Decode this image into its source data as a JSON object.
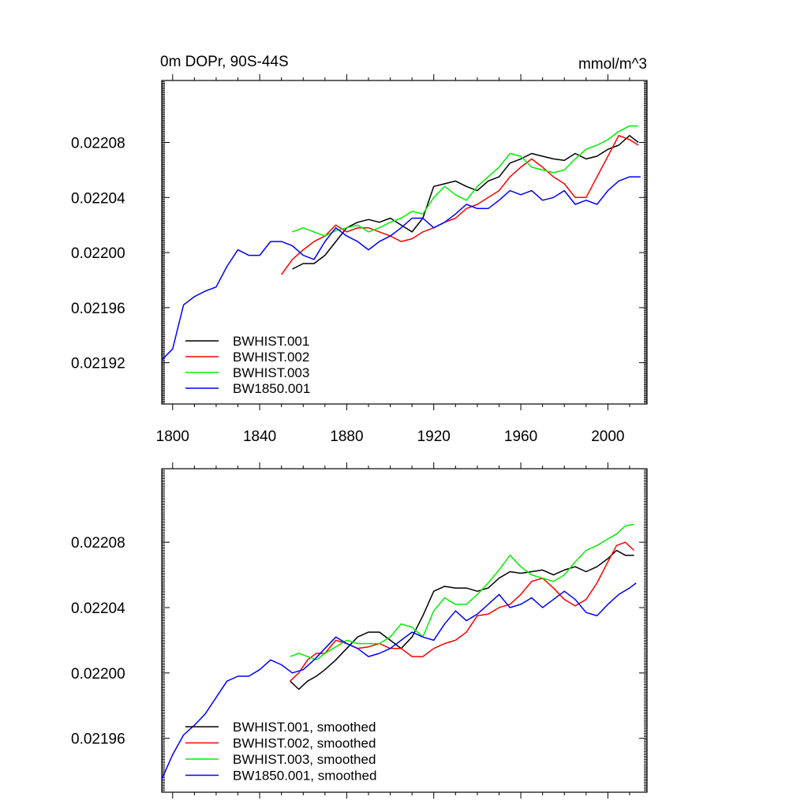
{
  "figure": {
    "title_left": "0m DOPr, 90S-44S",
    "title_right": "mmol/m^3"
  },
  "chart_data": [
    {
      "type": "line",
      "title": "0m DOPr, 90S-44S",
      "units": "mmol/m^3",
      "xlabel": "",
      "ylabel": "",
      "xlim": [
        1795,
        2018
      ],
      "ylim": [
        0.02189,
        0.022125
      ],
      "xticks": [
        1800,
        1840,
        1880,
        1920,
        1960,
        2000
      ],
      "xtick_labels": [
        "1800",
        "1840",
        "1880",
        "1920",
        "1960",
        "2000"
      ],
      "yticks": [
        0.02192,
        0.02196,
        0.022,
        0.02204,
        0.02208
      ],
      "ytick_labels": [
        "0.02192",
        "0.02196",
        "0.02200",
        "0.02204",
        "0.02208"
      ],
      "legend": "bottom-left",
      "series": [
        {
          "name": "BWHIST.001",
          "color": "#000000",
          "x": [
            1855,
            1860,
            1865,
            1870,
            1875,
            1880,
            1885,
            1890,
            1895,
            1900,
            1905,
            1910,
            1915,
            1920,
            1925,
            1930,
            1935,
            1940,
            1945,
            1950,
            1955,
            1960,
            1965,
            1970,
            1975,
            1980,
            1985,
            1990,
            1995,
            2000,
            2005,
            2010,
            2014
          ],
          "values": [
            0.021988,
            0.021992,
            0.021992,
            0.021998,
            0.022008,
            0.022018,
            0.022022,
            0.022024,
            0.022022,
            0.022025,
            0.02202,
            0.022015,
            0.022025,
            0.022048,
            0.02205,
            0.022052,
            0.022048,
            0.022045,
            0.022052,
            0.022055,
            0.022065,
            0.022068,
            0.022072,
            0.02207,
            0.022068,
            0.022067,
            0.022072,
            0.022068,
            0.02207,
            0.022075,
            0.022078,
            0.022085,
            0.02208
          ]
        },
        {
          "name": "BWHIST.002",
          "color": "#ff0000",
          "x": [
            1850,
            1855,
            1860,
            1865,
            1870,
            1875,
            1880,
            1885,
            1890,
            1895,
            1900,
            1905,
            1910,
            1915,
            1920,
            1925,
            1930,
            1935,
            1940,
            1945,
            1950,
            1955,
            1960,
            1965,
            1970,
            1975,
            1980,
            1985,
            1990,
            1995,
            2000,
            2005,
            2010,
            2014
          ],
          "values": [
            0.021984,
            0.021995,
            0.022002,
            0.022008,
            0.022012,
            0.02202,
            0.022015,
            0.022018,
            0.022018,
            0.022015,
            0.022012,
            0.022008,
            0.02201,
            0.022015,
            0.022018,
            0.022022,
            0.022025,
            0.022032,
            0.022035,
            0.02204,
            0.022045,
            0.022055,
            0.022062,
            0.022068,
            0.022062,
            0.022055,
            0.02205,
            0.02204,
            0.02204,
            0.022055,
            0.02207,
            0.022085,
            0.022082,
            0.022078
          ]
        },
        {
          "name": "BWHIST.003",
          "color": "#00ee00",
          "x": [
            1855,
            1860,
            1865,
            1870,
            1875,
            1880,
            1885,
            1890,
            1895,
            1900,
            1905,
            1910,
            1915,
            1920,
            1925,
            1930,
            1935,
            1940,
            1945,
            1950,
            1955,
            1960,
            1965,
            1970,
            1975,
            1980,
            1985,
            1990,
            1995,
            2000,
            2005,
            2010,
            2014
          ],
          "values": [
            0.022015,
            0.022018,
            0.022015,
            0.022012,
            0.022016,
            0.022018,
            0.02202,
            0.022015,
            0.022018,
            0.022022,
            0.022025,
            0.02203,
            0.022028,
            0.02204,
            0.022048,
            0.022042,
            0.022038,
            0.022048,
            0.022055,
            0.022062,
            0.022072,
            0.02207,
            0.022062,
            0.02206,
            0.022058,
            0.02206,
            0.022068,
            0.022075,
            0.022078,
            0.022082,
            0.022088,
            0.022092,
            0.022092
          ]
        },
        {
          "name": "BW1850.001",
          "color": "#0000ff",
          "x": [
            1795,
            1800,
            1805,
            1810,
            1815,
            1820,
            1825,
            1830,
            1835,
            1840,
            1845,
            1850,
            1855,
            1860,
            1865,
            1870,
            1875,
            1880,
            1885,
            1890,
            1895,
            1900,
            1905,
            1910,
            1915,
            1920,
            1925,
            1930,
            1935,
            1940,
            1945,
            1950,
            1955,
            1960,
            1965,
            1970,
            1975,
            1980,
            1985,
            1990,
            1995,
            2000,
            2005,
            2010,
            2015
          ],
          "values": [
            0.021922,
            0.02193,
            0.021962,
            0.021968,
            0.021972,
            0.021975,
            0.02199,
            0.022002,
            0.021998,
            0.021998,
            0.022008,
            0.022008,
            0.022005,
            0.021998,
            0.021995,
            0.022008,
            0.022018,
            0.022012,
            0.022008,
            0.022002,
            0.022008,
            0.022012,
            0.022018,
            0.022025,
            0.022025,
            0.022018,
            0.022022,
            0.022028,
            0.022035,
            0.022032,
            0.022032,
            0.022038,
            0.022045,
            0.022042,
            0.022045,
            0.022038,
            0.02204,
            0.022045,
            0.022035,
            0.022038,
            0.022035,
            0.022045,
            0.022052,
            0.022055,
            0.022055
          ]
        }
      ]
    },
    {
      "type": "line",
      "title": "",
      "xlabel": "",
      "ylabel": "",
      "xlim": [
        1795,
        2018
      ],
      "ylim": [
        0.021927,
        0.022125
      ],
      "xticks": [
        1800,
        1840,
        1880,
        1920,
        1960,
        2000
      ],
      "yticks": [
        0.02196,
        0.022,
        0.02204,
        0.02208
      ],
      "ytick_labels": [
        "0.02196",
        "0.02200",
        "0.02204",
        "0.02208"
      ],
      "legend": "bottom-left",
      "series": [
        {
          "name": "BWHIST.001, smoothed",
          "color": "#000000",
          "x": [
            1854,
            1858,
            1862,
            1866,
            1870,
            1875,
            1880,
            1885,
            1890,
            1895,
            1900,
            1905,
            1910,
            1915,
            1920,
            1925,
            1930,
            1935,
            1940,
            1945,
            1950,
            1955,
            1960,
            1965,
            1970,
            1975,
            1980,
            1985,
            1990,
            1995,
            2000,
            2004,
            2008,
            2012
          ],
          "values": [
            0.021995,
            0.02199,
            0.021995,
            0.021998,
            0.022002,
            0.022008,
            0.022015,
            0.022022,
            0.022025,
            0.022025,
            0.02202,
            0.022015,
            0.022022,
            0.022035,
            0.02205,
            0.022053,
            0.022052,
            0.022052,
            0.02205,
            0.022052,
            0.022058,
            0.022062,
            0.022061,
            0.022062,
            0.022063,
            0.02206,
            0.022063,
            0.022065,
            0.022062,
            0.022065,
            0.02207,
            0.022075,
            0.022072,
            0.022072
          ]
        },
        {
          "name": "BWHIST.002, smoothed",
          "color": "#ff0000",
          "x": [
            1854,
            1858,
            1862,
            1866,
            1870,
            1875,
            1880,
            1885,
            1890,
            1895,
            1900,
            1905,
            1910,
            1915,
            1920,
            1925,
            1930,
            1935,
            1940,
            1945,
            1950,
            1955,
            1960,
            1965,
            1970,
            1975,
            1980,
            1985,
            1990,
            1995,
            2000,
            2004,
            2008,
            2012
          ],
          "values": [
            0.021995,
            0.022,
            0.022008,
            0.022012,
            0.022012,
            0.02202,
            0.022018,
            0.022015,
            0.022016,
            0.022018,
            0.022015,
            0.022015,
            0.02201,
            0.02201,
            0.022015,
            0.022018,
            0.02202,
            0.022025,
            0.022035,
            0.022036,
            0.02204,
            0.022042,
            0.022048,
            0.022056,
            0.022058,
            0.022052,
            0.022045,
            0.022041,
            0.022045,
            0.022055,
            0.022068,
            0.022078,
            0.02208,
            0.022075
          ]
        },
        {
          "name": "BWHIST.003, smoothed",
          "color": "#00ee00",
          "x": [
            1854,
            1858,
            1862,
            1866,
            1870,
            1875,
            1880,
            1885,
            1890,
            1895,
            1900,
            1905,
            1910,
            1915,
            1920,
            1925,
            1930,
            1935,
            1940,
            1945,
            1950,
            1955,
            1960,
            1965,
            1970,
            1975,
            1980,
            1985,
            1990,
            1995,
            2000,
            2004,
            2008,
            2012
          ],
          "values": [
            0.02201,
            0.022012,
            0.02201,
            0.022008,
            0.022012,
            0.022016,
            0.02202,
            0.022018,
            0.022018,
            0.022018,
            0.022022,
            0.02203,
            0.022028,
            0.022022,
            0.022038,
            0.022046,
            0.022042,
            0.022042,
            0.022048,
            0.022055,
            0.022063,
            0.022072,
            0.022065,
            0.02206,
            0.022058,
            0.022056,
            0.02206,
            0.022068,
            0.022075,
            0.022078,
            0.022082,
            0.022085,
            0.02209,
            0.022091
          ]
        },
        {
          "name": "BW1850.001, smoothed",
          "color": "#0000ff",
          "x": [
            1795,
            1800,
            1805,
            1810,
            1815,
            1820,
            1825,
            1830,
            1835,
            1840,
            1845,
            1850,
            1855,
            1860,
            1865,
            1870,
            1875,
            1880,
            1885,
            1890,
            1895,
            1900,
            1905,
            1910,
            1915,
            1920,
            1925,
            1930,
            1935,
            1940,
            1945,
            1950,
            1955,
            1960,
            1965,
            1970,
            1975,
            1980,
            1985,
            1990,
            1995,
            2000,
            2005,
            2010,
            2013
          ],
          "values": [
            0.021935,
            0.02195,
            0.021962,
            0.021968,
            0.021975,
            0.021985,
            0.021995,
            0.021998,
            0.021998,
            0.022002,
            0.022008,
            0.022005,
            0.022,
            0.022002,
            0.022008,
            0.022015,
            0.022022,
            0.022018,
            0.022015,
            0.02201,
            0.022012,
            0.022015,
            0.02202,
            0.022025,
            0.022022,
            0.02202,
            0.02203,
            0.022038,
            0.022032,
            0.022036,
            0.022042,
            0.022048,
            0.02204,
            0.022042,
            0.022046,
            0.02204,
            0.022045,
            0.02205,
            0.022045,
            0.022037,
            0.022035,
            0.022042,
            0.022048,
            0.022052,
            0.022055
          ]
        }
      ]
    }
  ]
}
